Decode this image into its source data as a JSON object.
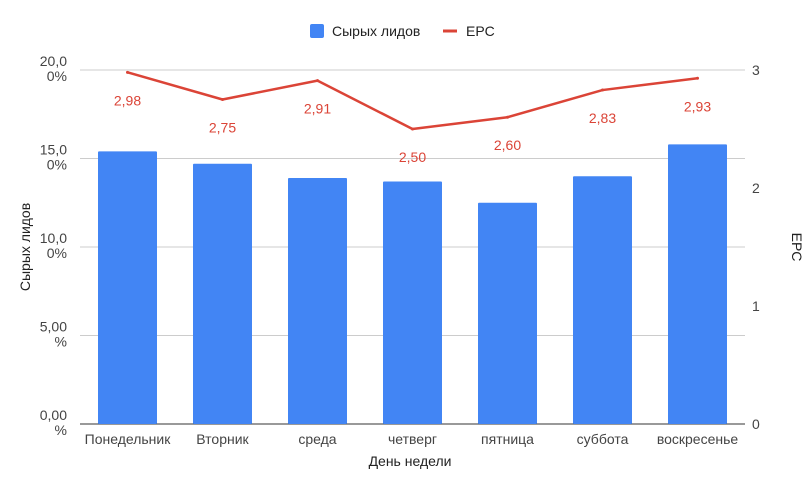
{
  "chart_data": {
    "type": "bar",
    "xlabel": "День недели",
    "categories": [
      "Понедельник",
      "Вторник",
      "среда",
      "четверг",
      "пятница",
      "суббота",
      "воскресенье"
    ],
    "series": [
      {
        "name": "Сырых лидов",
        "type": "bar",
        "axis": "left",
        "color": "#4285f4",
        "values": [
          15.4,
          14.7,
          13.9,
          13.7,
          12.5,
          14.0,
          15.8
        ]
      },
      {
        "name": "EPC",
        "type": "line",
        "axis": "right",
        "color": "#db4437",
        "values": [
          2.98,
          2.75,
          2.91,
          2.5,
          2.6,
          2.83,
          2.93
        ],
        "data_labels": [
          "2,98",
          "2,75",
          "2,91",
          "2,50",
          "2,60",
          "2,83",
          "2,93"
        ]
      }
    ],
    "y_left": {
      "label": "Сырых лидов",
      "ylim": [
        0,
        20
      ],
      "ticks": [
        {
          "value": 0,
          "line1": "0,00",
          "line2": "%"
        },
        {
          "value": 5,
          "line1": "5,00",
          "line2": "%"
        },
        {
          "value": 10,
          "line1": "10,0",
          "line2": "0%"
        },
        {
          "value": 15,
          "line1": "15,0",
          "line2": "0%"
        },
        {
          "value": 20,
          "line1": "20,0",
          "line2": "0%"
        }
      ]
    },
    "y_right": {
      "label": "EPC",
      "ylim": [
        0,
        3
      ],
      "ticks": [
        "0",
        "1",
        "2",
        "3"
      ]
    },
    "grid": true,
    "legend_position": "top-center"
  }
}
